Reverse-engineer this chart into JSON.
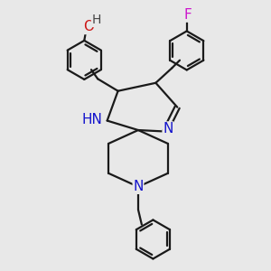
{
  "background_color": "#e8e8e8",
  "bond_color": "#1a1a1a",
  "bond_width": 1.6,
  "atom_colors": {
    "N": "#1414cc",
    "O": "#cc1414",
    "F": "#cc14cc"
  },
  "font_size_atom": 11,
  "figsize": [
    3.0,
    3.0
  ],
  "dpi": 100
}
